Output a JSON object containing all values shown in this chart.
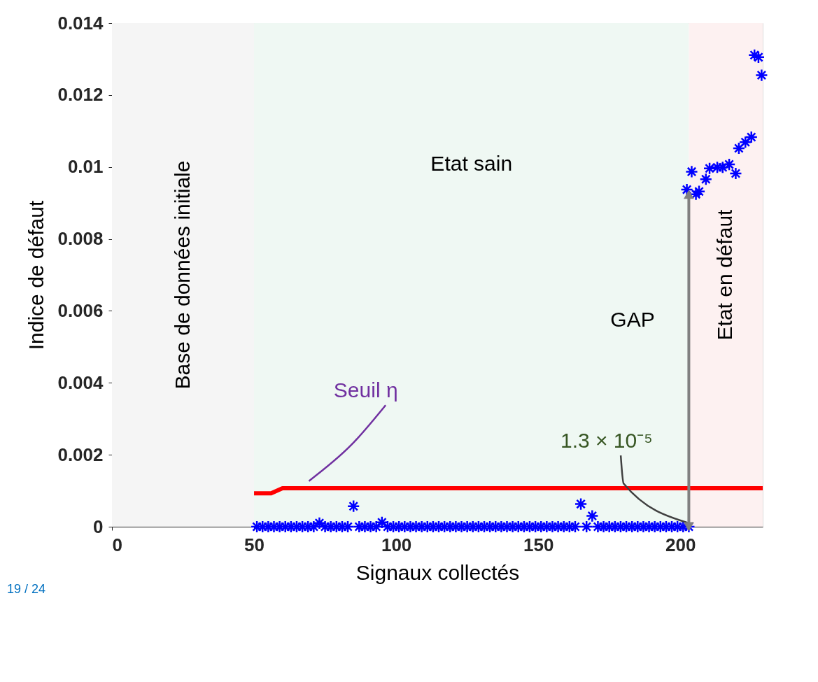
{
  "chart_data": {
    "type": "scatter",
    "xlabel": "Signaux collectés",
    "ylabel": "Indice de défaut",
    "xlim": [
      0,
      229
    ],
    "xticks": [
      0,
      50,
      100,
      150,
      200
    ],
    "ylim": [
      0,
      0.014
    ],
    "yticks": [
      0,
      0.002,
      0.004,
      0.006,
      0.008,
      0.01,
      0.012,
      0.014
    ],
    "grid": false,
    "marker": "cross",
    "series": [
      {
        "color": "#0000ff",
        "x": [
          51,
          53,
          55,
          57,
          59,
          61,
          63,
          65,
          67,
          69,
          71,
          73,
          75,
          77,
          79,
          81,
          83,
          85,
          87,
          89,
          91,
          93,
          95,
          97,
          99,
          101,
          103,
          105,
          107,
          109,
          111,
          113,
          115,
          117,
          119,
          121,
          123,
          125,
          127,
          129,
          131,
          133,
          135,
          137,
          139,
          141,
          143,
          145,
          147,
          149,
          151,
          153,
          155,
          157,
          159,
          161,
          163,
          165,
          167,
          169,
          171,
          173,
          175,
          177,
          179,
          181,
          183,
          185,
          187,
          189,
          191,
          193,
          195,
          197,
          199,
          201,
          203,
          202.3,
          204,
          205.5,
          206.6,
          209,
          210.3,
          213,
          214.9,
          217.2,
          219.5,
          220.6,
          222.9,
          225,
          226.1,
          227.5,
          228.6
        ],
        "values": [
          0,
          0,
          0,
          0,
          0,
          0,
          0,
          0,
          0,
          0,
          0,
          0.0001,
          0,
          0,
          0,
          0,
          0,
          0.00057,
          0,
          0,
          0,
          0,
          0.00012,
          0,
          0,
          0,
          0,
          0,
          0,
          0,
          0,
          0,
          0,
          0,
          0,
          0,
          0,
          0,
          0,
          0,
          0,
          0,
          0,
          0,
          0,
          0,
          0,
          0,
          0,
          0,
          0,
          0,
          0,
          0,
          0,
          0,
          0,
          0.00063,
          0,
          0.0003,
          0,
          0,
          0,
          0,
          0,
          0,
          0,
          0,
          0,
          0,
          0,
          0,
          0,
          0,
          0,
          0,
          0,
          0.00937,
          0.00987,
          0.00924,
          0.00932,
          0.00966,
          0.00996,
          0.00999,
          0.00999,
          0.01007,
          0.00982,
          0.01052,
          0.01069,
          0.01083,
          0.01311,
          0.01305,
          0.01255
        ]
      },
      {
        "type": "line",
        "marker": "none",
        "color": "#ff0000",
        "x": [
          50,
          56,
          60,
          229
        ],
        "values": [
          0.00093,
          0.00093,
          0.00107,
          0.00107
        ]
      }
    ],
    "bands": [
      {
        "axis": "x",
        "from": 0,
        "to": 50,
        "label": "Base de données initiale",
        "color": "#f5f5f5"
      },
      {
        "axis": "x",
        "from": 50,
        "to": 203,
        "label": "Etat sain",
        "color": "#eff8f3"
      },
      {
        "axis": "x",
        "from": 203,
        "to": 229,
        "label": "Etat en défaut",
        "color": "#fdf1f1"
      }
    ],
    "annotations": [
      "Seuil η",
      "GAP",
      {
        "text": "1.3 × 10⁻⁵",
        "x": 203,
        "y": 0
      },
      "19 / 24"
    ]
  }
}
